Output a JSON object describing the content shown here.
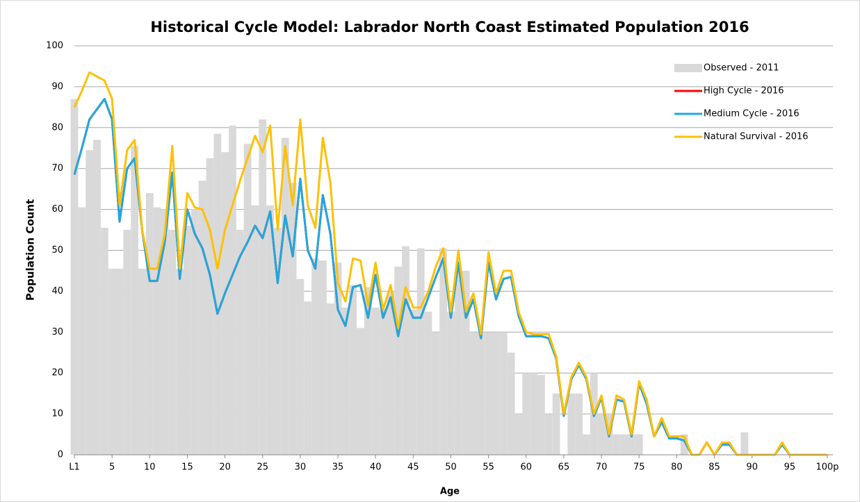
{
  "chart_data": {
    "type": "combo",
    "title": "Historical Cycle Model: Labrador North Coast Estimated Population 2016",
    "xlabel": "Age",
    "ylabel": "Population Count",
    "categories": [
      "L1",
      null,
      null,
      null,
      null,
      "5",
      null,
      null,
      null,
      null,
      "10",
      null,
      null,
      null,
      null,
      "15",
      null,
      null,
      null,
      null,
      "20",
      null,
      null,
      null,
      null,
      "25",
      null,
      null,
      null,
      null,
      "30",
      null,
      null,
      null,
      null,
      "35",
      null,
      null,
      null,
      null,
      "40",
      null,
      null,
      null,
      null,
      "45",
      null,
      null,
      null,
      null,
      "50",
      null,
      null,
      null,
      null,
      "55",
      null,
      null,
      null,
      null,
      "60",
      null,
      null,
      null,
      null,
      "65",
      null,
      null,
      null,
      null,
      "70",
      null,
      null,
      null,
      null,
      "75",
      null,
      null,
      null,
      null,
      "80",
      null,
      null,
      null,
      null,
      "85",
      null,
      null,
      null,
      null,
      "90",
      null,
      null,
      null,
      null,
      "95",
      null,
      null,
      null,
      null,
      "100p"
    ],
    "ylim": [
      0,
      100
    ],
    "yticks": [
      0,
      10,
      20,
      30,
      40,
      50,
      60,
      70,
      80,
      90,
      100
    ],
    "grid": true,
    "legend": "top-right",
    "series": [
      {
        "name": "Observed - 2011",
        "type": "bar",
        "color": "#d9d9d9",
        "values": [
          87,
          60.5,
          74.5,
          77,
          55.5,
          45.5,
          45.5,
          55,
          75.5,
          45.5,
          64,
          60.5,
          60,
          55,
          45.5,
          56,
          60,
          67,
          72.5,
          78.5,
          74,
          80.5,
          55,
          76,
          61,
          82,
          61,
          55.5,
          77.5,
          66.5,
          43,
          37.5,
          48,
          47.5,
          37,
          47,
          36,
          41.5,
          31,
          41,
          36,
          35.5,
          40,
          46,
          51,
          35.5,
          50.5,
          35,
          30,
          50.5,
          35,
          45,
          45,
          30,
          30,
          30,
          30,
          30,
          25,
          10,
          20,
          20,
          19.5,
          10,
          15,
          0,
          15,
          15,
          5,
          20,
          10,
          10,
          5,
          5,
          5,
          5,
          0,
          0,
          0,
          0,
          0,
          5,
          0,
          0,
          0,
          0,
          0,
          0,
          0,
          5.5,
          0,
          0,
          0,
          0,
          0,
          0,
          0,
          0,
          0,
          0,
          0
        ]
      },
      {
        "name": "High Cycle - 2016",
        "type": "line",
        "color": "#ff0000",
        "values": [
          68.5,
          75,
          82,
          84.5,
          87,
          82,
          57,
          70,
          72.5,
          55,
          42.5,
          42.5,
          52,
          69,
          43,
          60,
          54,
          50.5,
          44,
          34.5,
          39.5,
          44,
          48.5,
          52,
          56,
          53,
          59.5,
          42,
          58.5,
          48.5,
          67.5,
          50,
          45.5,
          63.5,
          54,
          35.5,
          31.5,
          41,
          41.5,
          33.5,
          44,
          33.5,
          38.5,
          29,
          38,
          33.5,
          33.5,
          38.5,
          43.5,
          48,
          33.5,
          47,
          33.5,
          38,
          28.5,
          47,
          38,
          43,
          43.5,
          34,
          29,
          29,
          29,
          28.5,
          23.5,
          9.5,
          18.5,
          22,
          18.5,
          9.5,
          14,
          4.5,
          13.5,
          13,
          4.5,
          17.5,
          12.5,
          4.5,
          8,
          4,
          4,
          3.5,
          0,
          0,
          3,
          0,
          2.5,
          2.5,
          0,
          0,
          0,
          0,
          0,
          0,
          2.5,
          0,
          0,
          0,
          0,
          0,
          0
        ]
      },
      {
        "name": "Medium Cycle - 2016",
        "type": "line",
        "color": "#1fa8e0",
        "values": [
          68.5,
          75,
          82,
          84.5,
          87,
          82,
          57,
          70,
          72.5,
          55,
          42.5,
          42.5,
          52,
          69,
          43,
          60,
          54,
          50.5,
          44,
          34.5,
          39.5,
          44,
          48.5,
          52,
          56,
          53,
          59.5,
          42,
          58.5,
          48.5,
          67.5,
          50,
          45.5,
          63.5,
          54,
          35.5,
          31.5,
          41,
          41.5,
          33.5,
          44,
          33.5,
          38.5,
          29,
          38,
          33.5,
          33.5,
          38.5,
          43.5,
          48,
          33.5,
          47,
          33.5,
          38,
          28.5,
          47,
          38,
          43,
          43.5,
          34,
          29,
          29,
          29,
          28.5,
          23.5,
          9.5,
          18.5,
          22,
          18.5,
          9.5,
          14,
          4.5,
          13.5,
          13,
          4.5,
          17.5,
          12.5,
          4.5,
          8,
          4,
          4,
          3.5,
          0,
          0,
          3,
          0,
          2.5,
          2.5,
          0,
          0,
          0,
          0,
          0,
          0,
          2.5,
          0,
          0,
          0,
          0,
          0,
          0
        ]
      },
      {
        "name": "Natural Survival - 2016",
        "type": "line",
        "color": "#ffc000",
        "values": [
          85,
          89,
          93.5,
          92.5,
          91.5,
          87,
          61,
          74.5,
          77,
          55,
          45.5,
          45.5,
          54,
          75.5,
          45.5,
          64,
          60.5,
          60,
          55,
          45.5,
          55,
          61,
          67,
          72.5,
          78,
          74,
          80.5,
          55,
          75.5,
          61,
          82,
          61,
          55.5,
          77.5,
          66.5,
          42,
          37.5,
          48,
          47.5,
          36.5,
          47,
          35.5,
          41.5,
          31,
          41,
          36,
          36,
          40,
          46,
          50.5,
          35,
          50,
          35,
          39.5,
          29.5,
          49.5,
          39.5,
          45,
          45,
          35,
          30,
          29.5,
          29.5,
          29.5,
          24,
          10,
          19,
          22.5,
          19,
          10,
          14.5,
          5,
          14.5,
          13.5,
          5,
          18,
          13.5,
          4.5,
          9,
          4.5,
          4.5,
          4.5,
          0,
          0,
          3,
          0,
          3,
          3,
          0,
          0,
          0,
          0,
          0,
          0,
          3,
          0,
          0,
          0,
          0,
          0,
          0
        ]
      }
    ]
  }
}
